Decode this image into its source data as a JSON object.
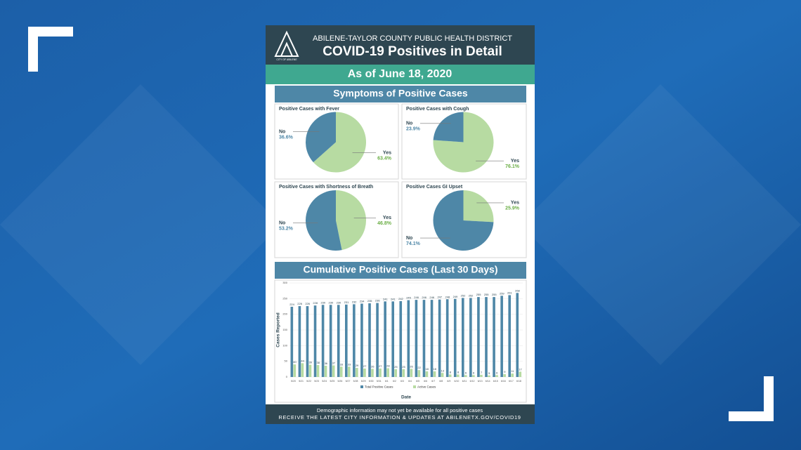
{
  "header": {
    "logo_text": "CITY OF ABILENE",
    "org": "ABILENE-TAYLOR COUNTY PUBLIC HEALTH DISTRICT",
    "title": "COVID-19 Positives in Detail",
    "date": "As of June 18, 2020"
  },
  "sections": {
    "symptoms": "Symptoms of Positive Cases",
    "cumulative": "Cumulative Positive Cases (Last 30 Days)"
  },
  "chart_data": [
    {
      "type": "pie",
      "title": "Positive Cases with Fever",
      "categories": [
        "Yes",
        "No"
      ],
      "values": [
        63.4,
        36.6
      ],
      "value_labels": [
        "63.4%",
        "36.6%"
      ],
      "colors": [
        "#b7dba2",
        "#4e87a7"
      ]
    },
    {
      "type": "pie",
      "title": "Positive Cases with Cough",
      "categories": [
        "Yes",
        "No"
      ],
      "values": [
        76.1,
        23.9
      ],
      "value_labels": [
        "76.1%",
        "23.9%"
      ],
      "colors": [
        "#b7dba2",
        "#4e87a7"
      ]
    },
    {
      "type": "pie",
      "title": "Positive Cases with Shortness of Breath",
      "categories": [
        "Yes",
        "No"
      ],
      "values": [
        46.8,
        53.2
      ],
      "value_labels": [
        "46.8%",
        "53.2%"
      ],
      "colors": [
        "#b7dba2",
        "#4e87a7"
      ]
    },
    {
      "type": "pie",
      "title": "Positive Cases GI Upset",
      "categories": [
        "Yes",
        "No"
      ],
      "values": [
        25.9,
        74.1
      ],
      "value_labels": [
        "25.9%",
        "74.1%"
      ],
      "colors": [
        "#b7dba2",
        "#4e87a7"
      ]
    },
    {
      "type": "bar",
      "x_label": "Date",
      "y_label": "Cases Reported",
      "categories": [
        "5/20",
        "5/21",
        "5/22",
        "5/23",
        "5/24",
        "5/25",
        "5/26",
        "5/27",
        "5/28",
        "5/29",
        "5/30",
        "5/31",
        "6/1",
        "6/2",
        "6/3",
        "6/4",
        "6/5",
        "6/6",
        "6/7",
        "6/8",
        "6/9",
        "6/10",
        "6/11",
        "6/12",
        "6/13",
        "6/14",
        "6/15",
        "6/16",
        "6/17",
        "6/18"
      ],
      "series": [
        {
          "name": "Total Positive Cases",
          "color": "#4e87a7",
          "values": [
            224,
            226,
            226,
            228,
            230,
            230,
            230,
            231,
            232,
            234,
            235,
            236,
            241,
            241,
            242,
            245,
            246,
            246,
            246,
            247,
            248,
            249,
            252,
            252,
            255,
            255,
            255,
            259,
            261,
            268
          ]
        },
        {
          "name": "Active Cases",
          "color": "#b7dba2",
          "values": [
            40,
            44,
            39,
            38,
            36,
            37,
            33,
            33,
            29,
            27,
            26,
            27,
            28,
            25,
            25,
            26,
            22,
            18,
            18,
            13,
            8,
            8,
            6,
            6,
            7,
            5,
            6,
            9,
            11,
            17
          ]
        }
      ],
      "ylim": [
        0,
        300
      ],
      "yticks": [
        0,
        50,
        100,
        150,
        200,
        250,
        300
      ],
      "grid": true,
      "legend": "bottom"
    }
  ],
  "footer": {
    "note": "Demographic information may not yet be available for all positive cases",
    "link": "RECEIVE THE LATEST CITY INFORMATION & UPDATES AT ABILENETX.GOV/COVID19"
  }
}
